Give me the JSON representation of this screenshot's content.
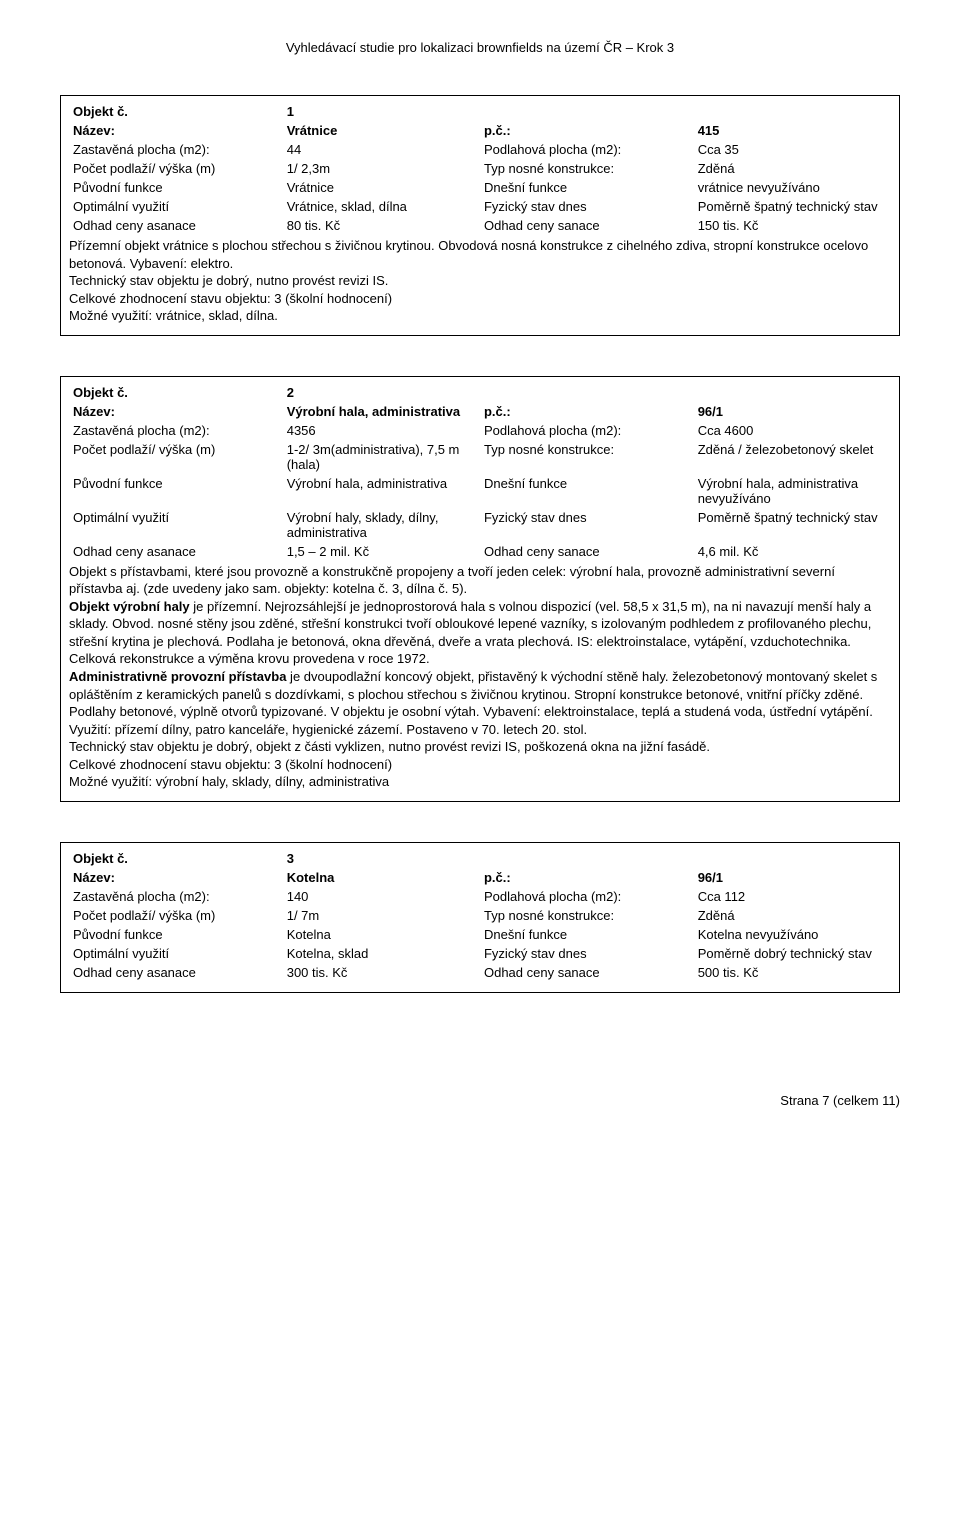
{
  "page_header": "Vyhledávací studie pro lokalizaci brownfields na území ČR – Krok 3",
  "footer": "Strana 7 (celkem 11)",
  "objects": [
    {
      "num_label": "Objekt č.",
      "num": "1",
      "nazev_label": "Název:",
      "nazev": "Vrátnice",
      "pc_label": "p.č.:",
      "pc": "415",
      "zast_label": "Zastavěná plocha (m2):",
      "zast": "44",
      "podl_label": "Podlahová plocha (m2):",
      "podl": "Cca 35",
      "pocet_label": "Počet podlaží/ výška (m)",
      "pocet": "1/ 2,3m",
      "typ_label": "Typ nosné konstrukce:",
      "typ": "Zděná",
      "puv_label": "Původní funkce",
      "puv": "Vrátnice",
      "dnes_label": "Dnešní funkce",
      "dnes": "vrátnice nevyužíváno",
      "opt_label": "Optimální využití",
      "opt": "Vrátnice, sklad, dílna",
      "fyz_label": "Fyzický stav dnes",
      "fyz": "Poměrně špatný technický stav",
      "asan_label": "Odhad ceny asanace",
      "asan": "80 tis. Kč",
      "san_label": "Odhad ceny sanace",
      "san": "150 tis. Kč",
      "desc": "Přízemní objekt vrátnice s plochou střechou s živičnou krytinou. Obvodová nosná konstrukce z cihelného zdiva, stropní konstrukce ocelovo betonová. Vybavení: elektro.\nTechnický stav objektu je dobrý, nutno provést revizi IS.\nCelkové zhodnocení stavu objektu: 3 (školní hodnocení)\nMožné využití: vrátnice, sklad, dílna."
    },
    {
      "num_label": "Objekt č.",
      "num": "2",
      "nazev_label": "Název:",
      "nazev": "Výrobní hala, administrativa",
      "pc_label": "p.č.:",
      "pc": "96/1",
      "zast_label": "Zastavěná plocha (m2):",
      "zast": "4356",
      "podl_label": "Podlahová plocha (m2):",
      "podl": "Cca 4600",
      "pocet_label": "Počet podlaží/ výška (m)",
      "pocet": "1-2/ 3m(administrativa), 7,5 m (hala)",
      "typ_label": "Typ nosné konstrukce:",
      "typ": "Zděná / železobetonový skelet",
      "puv_label": "Původní funkce",
      "puv": "Výrobní hala, administrativa",
      "dnes_label": "Dnešní funkce",
      "dnes": "Výrobní hala, administrativa nevyužíváno",
      "opt_label": "Optimální využití",
      "opt": "Výrobní haly, sklady, dílny, administrativa",
      "fyz_label": "Fyzický stav dnes",
      "fyz": "Poměrně špatný technický stav",
      "asan_label": "Odhad ceny asanace",
      "asan": "1,5 – 2 mil. Kč",
      "san_label": "Odhad ceny sanace",
      "san": "4,6 mil. Kč",
      "desc_html": "Objekt s přístavbami, které jsou provozně a konstrukčně propojeny a tvoří jeden celek: výrobní hala, provozně administrativní severní přístavba aj. (zde uvedeny jako sam. objekty: kotelna č. 3, dílna č. 5).<br><b>Objekt výrobní haly</b> je přízemní. Nejrozsáhlejší je  jednoprostorová hala s volnou dispozicí (vel. 58,5 x 31,5 m), na ni navazují menší haly a sklady. Obvod. nosné stěny jsou zděné,  střešní konstrukci tvoří obloukové lepené vazníky,  s izolovaným podhledem z profilovaného plechu, střešní krytina je plechová. Podlaha je betonová, okna dřevěná, dveře a vrata plechová. IS: elektroinstalace, vytápění, vzduchotechnika. Celková rekonstrukce a výměna krovu provedena v roce 1972.<br><b>Administrativně provozní  přístavba</b> je dvoupodlažní koncový objekt, přistavěný k východní stěně haly. železobetonový montovaný skelet s opláštěním z keramických panelů s dozdívkami, s plochou střechou s živičnou krytinou. Stropní konstrukce betonové, vnitřní příčky zděné. Podlahy betonové, výplně otvorů typizované. V objektu je osobní výtah. Vybavení: elektroinstalace, teplá a studená voda, ústřední vytápění. Využití: přízemí dílny, patro kanceláře, hygienické zázemí. Postaveno v 70. letech 20. stol.<br>Technický stav objektu je dobrý, objekt z části vyklizen, nutno provést revizi IS, poškozená okna na jižní fasádě.<br>Celkové zhodnocení stavu objektu: 3 (školní hodnocení)<br>Možné využití: výrobní haly, sklady, dílny, administrativa"
    },
    {
      "num_label": "Objekt č.",
      "num": "3",
      "nazev_label": "Název:",
      "nazev": "Kotelna",
      "pc_label": "p.č.:",
      "pc": "96/1",
      "zast_label": "Zastavěná plocha (m2):",
      "zast": "140",
      "podl_label": "Podlahová plocha (m2):",
      "podl": "Cca 112",
      "pocet_label": "Počet podlaží/ výška (m)",
      "pocet": "1/ 7m",
      "typ_label": "Typ nosné konstrukce:",
      "typ": "Zděná",
      "puv_label": "Původní funkce",
      "puv": "Kotelna",
      "dnes_label": "Dnešní funkce",
      "dnes": "Kotelna nevyužíváno",
      "opt_label": "Optimální využití",
      "opt": "Kotelna, sklad",
      "fyz_label": "Fyzický stav dnes",
      "fyz": "Poměrně dobrý technický stav",
      "asan_label": "Odhad ceny asanace",
      "asan": "300 tis. Kč",
      "san_label": "Odhad ceny sanace",
      "san": "500 tis. Kč"
    }
  ]
}
